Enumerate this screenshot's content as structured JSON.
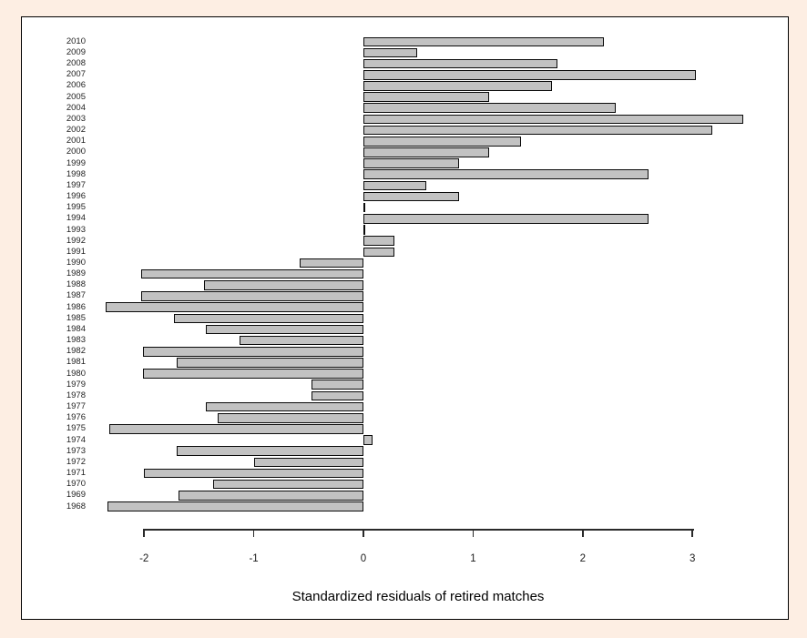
{
  "figure": {
    "background_color": "#fdeee3",
    "plot_background": "#ffffff",
    "plot_border_color": "#000000"
  },
  "chart_data": {
    "type": "bar",
    "orientation": "horizontal",
    "title": "",
    "xlabel": "Standardized residuals of retired matches",
    "ylabel": "",
    "xlim": [
      -2.45,
      3.55
    ],
    "xticks": [
      -2,
      -1,
      0,
      1,
      2,
      3
    ],
    "xtick_labels": [
      "-2",
      "-1",
      "0",
      "1",
      "2",
      "3"
    ],
    "grid": false,
    "legend": null,
    "bar_color": "#c2c2c2",
    "bar_border_color": "#0a0a0a",
    "categories": [
      "2010",
      "2009",
      "2008",
      "2007",
      "2006",
      "2005",
      "2004",
      "2003",
      "2002",
      "2001",
      "2000",
      "1999",
      "1998",
      "1997",
      "1996",
      "1995",
      "1994",
      "1993",
      "1992",
      "1991",
      "1990",
      "1989",
      "1988",
      "1987",
      "1986",
      "1985",
      "1984",
      "1983",
      "1982",
      "1981",
      "1980",
      "1979",
      "1978",
      "1977",
      "1976",
      "1975",
      "1974",
      "1973",
      "1972",
      "1971",
      "1970",
      "1969",
      "1968"
    ],
    "values": [
      2.19,
      0.49,
      1.77,
      3.03,
      1.72,
      1.15,
      2.3,
      3.46,
      3.18,
      1.44,
      1.15,
      0.87,
      2.6,
      0.57,
      0.87,
      0.0,
      2.6,
      0.0,
      0.28,
      0.28,
      -0.58,
      -2.03,
      -1.45,
      -2.03,
      -2.35,
      -1.73,
      -1.44,
      -1.13,
      -2.01,
      -1.7,
      -2.01,
      -0.47,
      -0.47,
      -1.44,
      -1.33,
      -2.32,
      0.08,
      -1.7,
      -1.0,
      -2.0,
      -1.37,
      -1.69,
      -2.33
    ]
  }
}
